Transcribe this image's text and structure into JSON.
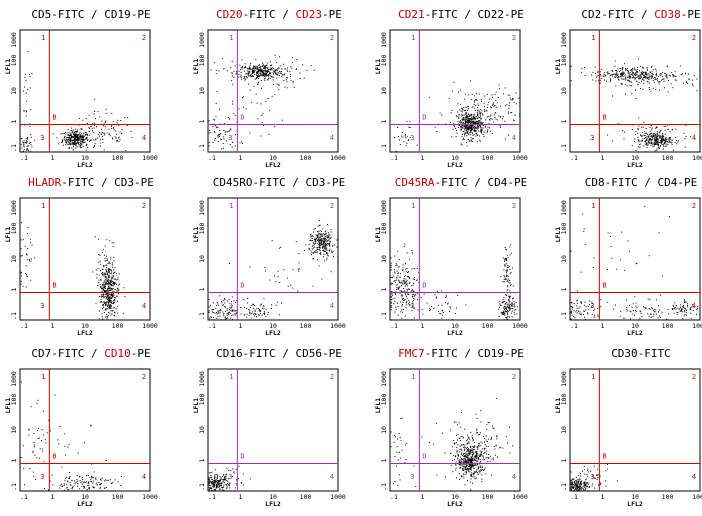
{
  "axes": {
    "x_label": "LFL2",
    "y_label": "LFL1",
    "x_ticks": [
      ".1",
      "1",
      "10",
      "100",
      "1000"
    ],
    "y_ticks": [
      "1000",
      "100",
      "10",
      "1",
      ".1"
    ],
    "x_scale": "log",
    "y_scale": "log",
    "xlim": [
      0.1,
      1000
    ],
    "ylim": [
      0.1,
      1000
    ]
  },
  "colors": {
    "red_gate": "#d00000",
    "purple_gate": "#9933aa",
    "red_marker": "#c00000"
  },
  "chart_data": [
    {
      "type": "scatter",
      "gate_color": "red",
      "gate_x": 0.8,
      "gate_y": 0.8,
      "title": [
        {
          "t": "CD5-FITC / CD19-PE",
          "r": false
        }
      ],
      "quadrant_labels": [
        "1",
        "2",
        "3",
        "4"
      ],
      "marker": "B",
      "clusters": [
        [
          0.7,
          -0.55,
          0.2,
          0.14,
          300
        ],
        [
          1.5,
          -0.4,
          0.5,
          0.35,
          120
        ],
        [
          -0.8,
          0.6,
          0.1,
          0.7,
          25
        ],
        [
          -0.8,
          -0.7,
          0.1,
          0.15,
          40
        ]
      ]
    },
    {
      "type": "scatter",
      "gate_color": "purple",
      "gate_x": 0.8,
      "gate_y": 0.8,
      "title": [
        {
          "t": "CD20",
          "r": true
        },
        {
          "t": "-FITC / ",
          "r": false
        },
        {
          "t": "CD23",
          "r": true
        },
        {
          "t": "-PE",
          "r": false
        }
      ],
      "quadrant_labels": [
        "1",
        "2",
        "3",
        "4"
      ],
      "marker": "D",
      "clusters": [
        [
          0.6,
          1.65,
          0.35,
          0.12,
          260
        ],
        [
          0.6,
          1.6,
          0.7,
          0.25,
          120
        ],
        [
          -0.6,
          -0.4,
          0.25,
          0.3,
          60
        ],
        [
          0.4,
          0.4,
          0.6,
          0.5,
          40
        ]
      ]
    },
    {
      "type": "scatter",
      "gate_color": "purple",
      "gate_x": 0.8,
      "gate_y": 0.8,
      "title": [
        {
          "t": "CD21",
          "r": true
        },
        {
          "t": "-FITC / CD22-PE",
          "r": false
        }
      ],
      "quadrant_labels": [
        "1",
        "2",
        "3",
        "4"
      ],
      "marker": "D",
      "clusters": [
        [
          1.45,
          -0.1,
          0.2,
          0.22,
          380
        ],
        [
          1.7,
          0.3,
          0.5,
          0.4,
          160
        ],
        [
          -0.6,
          -0.5,
          0.15,
          0.25,
          25
        ],
        [
          2.3,
          0.4,
          0.4,
          0.4,
          40
        ]
      ]
    },
    {
      "type": "scatter",
      "gate_color": "red",
      "gate_x": 0.8,
      "gate_y": 0.8,
      "title": [
        {
          "t": "CD2-FITC / ",
          "r": false
        },
        {
          "t": "CD38",
          "r": true
        },
        {
          "t": "-PE",
          "r": false
        }
      ],
      "quadrant_labels": [
        "1",
        "2",
        "3",
        "4"
      ],
      "marker": "B",
      "clusters": [
        [
          0.9,
          1.55,
          0.6,
          0.13,
          260
        ],
        [
          1.5,
          1.45,
          0.8,
          0.25,
          120
        ],
        [
          1.6,
          -0.6,
          0.25,
          0.13,
          240
        ],
        [
          1.5,
          -0.4,
          0.6,
          0.25,
          80
        ]
      ]
    },
    {
      "type": "scatter",
      "gate_color": "red",
      "gate_x": 0.8,
      "gate_y": 0.8,
      "title": [
        {
          "t": "HLADR",
          "r": true
        },
        {
          "t": "-FITC / CD3-PE",
          "r": false
        }
      ],
      "quadrant_labels": [
        "1",
        "2",
        "3",
        "4"
      ],
      "marker": "B",
      "clusters": [
        [
          1.7,
          0.0,
          0.12,
          0.45,
          340
        ],
        [
          1.7,
          0.2,
          0.2,
          0.7,
          120
        ],
        [
          -0.85,
          0.9,
          0.12,
          0.7,
          35
        ]
      ]
    },
    {
      "type": "scatter",
      "gate_color": "purple",
      "gate_x": 0.8,
      "gate_y": 0.8,
      "title": [
        {
          "t": "CD45RO-FITC / CD3-PE",
          "r": false
        }
      ],
      "quadrant_labels": [
        "1",
        "2",
        "3",
        "4"
      ],
      "marker": "D",
      "clusters": [
        [
          2.5,
          1.55,
          0.2,
          0.22,
          260
        ],
        [
          -0.5,
          -0.7,
          0.3,
          0.2,
          120
        ],
        [
          0.5,
          -0.7,
          0.25,
          0.15,
          60
        ],
        [
          1.5,
          0.6,
          0.8,
          0.6,
          40
        ]
      ]
    },
    {
      "type": "scatter",
      "gate_color": "purple",
      "gate_x": 0.8,
      "gate_y": 0.8,
      "title": [
        {
          "t": "CD45RA",
          "r": true
        },
        {
          "t": "-FITC / CD4-PE",
          "r": false
        }
      ],
      "quadrant_labels": [
        "1",
        "2",
        "3",
        "4"
      ],
      "marker": "D",
      "clusters": [
        [
          -0.6,
          0.0,
          0.25,
          0.55,
          240
        ],
        [
          2.6,
          -0.65,
          0.12,
          0.2,
          120
        ],
        [
          2.6,
          0.7,
          0.08,
          0.4,
          70
        ],
        [
          0.6,
          -0.6,
          0.3,
          0.3,
          40
        ]
      ]
    },
    {
      "type": "scatter",
      "gate_color": "red",
      "gate_x": 0.8,
      "gate_y": 0.8,
      "title": [
        {
          "t": "CD8-FITC / CD4-PE",
          "r": false
        }
      ],
      "quadrant_labels": [
        "1",
        "2",
        "3",
        "4"
      ],
      "marker": "B",
      "clusters": [
        [
          -0.6,
          -0.65,
          0.3,
          0.18,
          70
        ],
        [
          1.4,
          -0.65,
          0.5,
          0.18,
          70
        ],
        [
          2.5,
          -0.6,
          0.2,
          0.15,
          60
        ],
        [
          0.5,
          1.0,
          1.0,
          0.9,
          30
        ]
      ]
    },
    {
      "type": "scatter",
      "gate_color": "red",
      "gate_x": 0.8,
      "gate_y": 0.8,
      "title": [
        {
          "t": "CD7-FITC / ",
          "r": false
        },
        {
          "t": "CD10",
          "r": true
        },
        {
          "t": "-PE",
          "r": false
        }
      ],
      "quadrant_labels": [
        "1",
        "2",
        "3",
        "4"
      ],
      "marker": "B",
      "clusters": [
        [
          0.9,
          -0.75,
          0.5,
          0.18,
          140
        ],
        [
          -0.6,
          0.3,
          0.25,
          0.8,
          40
        ],
        [
          0.4,
          0.2,
          0.6,
          0.7,
          25
        ]
      ]
    },
    {
      "type": "scatter",
      "gate_color": "purple",
      "gate_x": 0.8,
      "gate_y": 0.8,
      "title": [
        {
          "t": "CD16-FITC / CD56-PE",
          "r": false
        }
      ],
      "quadrant_labels": [
        "1",
        "2",
        "3",
        "4"
      ],
      "marker": "D",
      "clusters": [
        [
          -0.75,
          -0.75,
          0.18,
          0.14,
          180
        ],
        [
          -0.3,
          -0.6,
          0.35,
          0.25,
          50
        ]
      ]
    },
    {
      "type": "scatter",
      "gate_color": "purple",
      "gate_x": 0.8,
      "gate_y": 0.8,
      "title": [
        {
          "t": "FMC7",
          "r": true
        },
        {
          "t": "-FITC / CD19-PE",
          "r": false
        }
      ],
      "quadrant_labels": [
        "1",
        "2",
        "3",
        "4"
      ],
      "marker": "D",
      "clusters": [
        [
          1.45,
          0.0,
          0.2,
          0.28,
          400
        ],
        [
          1.6,
          0.4,
          0.55,
          0.5,
          160
        ],
        [
          -0.7,
          0.2,
          0.2,
          0.5,
          30
        ]
      ]
    },
    {
      "type": "scatter",
      "gate_color": "red",
      "gate_x": 0.8,
      "gate_y": 0.8,
      "title": [
        {
          "t": "CD30-FITC",
          "r": false
        }
      ],
      "quadrant_labels": [
        "1",
        "2",
        "3",
        "4"
      ],
      "marker": "B",
      "clusters": [
        [
          -0.75,
          -0.8,
          0.15,
          0.12,
          160
        ],
        [
          -0.3,
          -0.6,
          0.3,
          0.2,
          50
        ]
      ]
    }
  ]
}
